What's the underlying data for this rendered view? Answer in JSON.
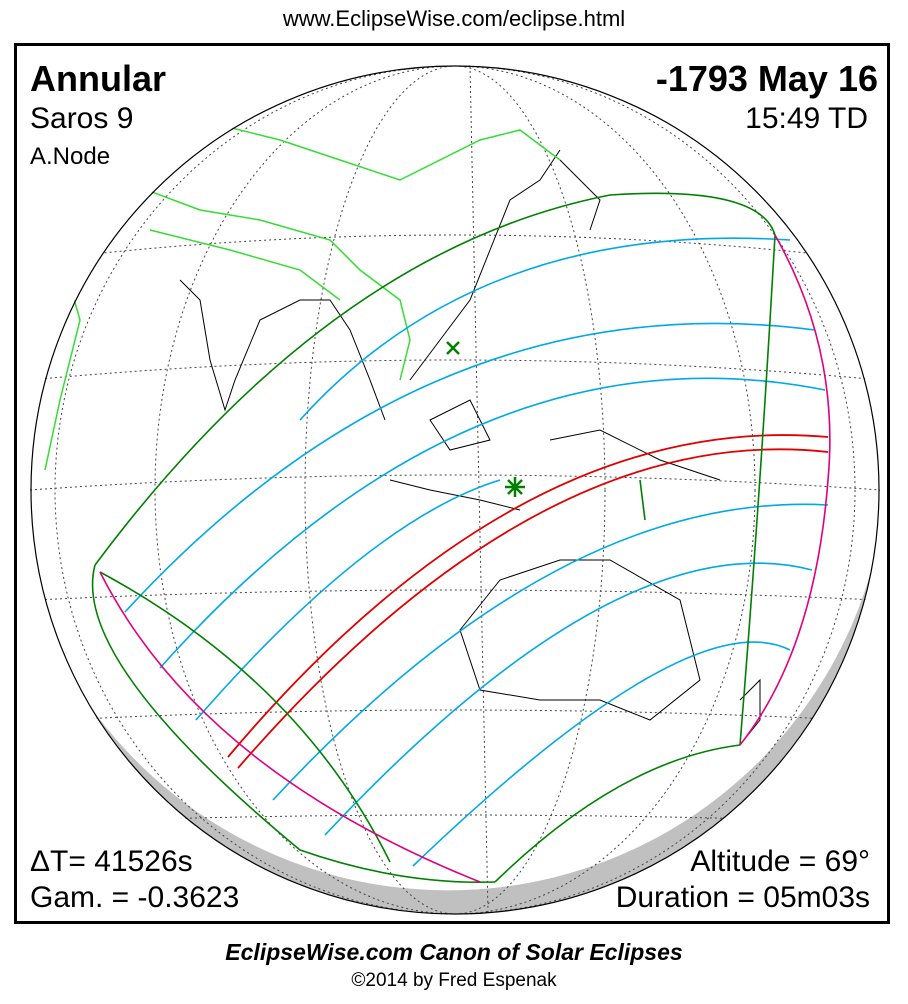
{
  "header": {
    "url": "www.EclipseWise.com/eclipse.html"
  },
  "eclipse": {
    "type": "Annular",
    "date": "-1793 May 16",
    "saros": "Saros   9",
    "time": "15:49 TD",
    "node": "A.Node",
    "delta_t": "ΔT=  41526s",
    "gamma": "Gam. = -0.3623",
    "altitude": "Altitude = 69°",
    "duration": "Duration = 05m03s"
  },
  "footer": {
    "title": "EclipseWise.com Canon of Solar Eclipses",
    "copyright": "©2014 by Fred Espenak"
  },
  "colors": {
    "penumbral_limits": "#008000",
    "partial_magnitude_lines": "#00a8e8",
    "central_path": "#e00000",
    "rise_set_curves": "#e0007f",
    "coastlines": "#000000",
    "borders": "#33dd33",
    "night_shadow": "#c0c0c0"
  },
  "markers": {
    "greatest_eclipse": "star-icon",
    "subsolar_point": "x-icon"
  }
}
